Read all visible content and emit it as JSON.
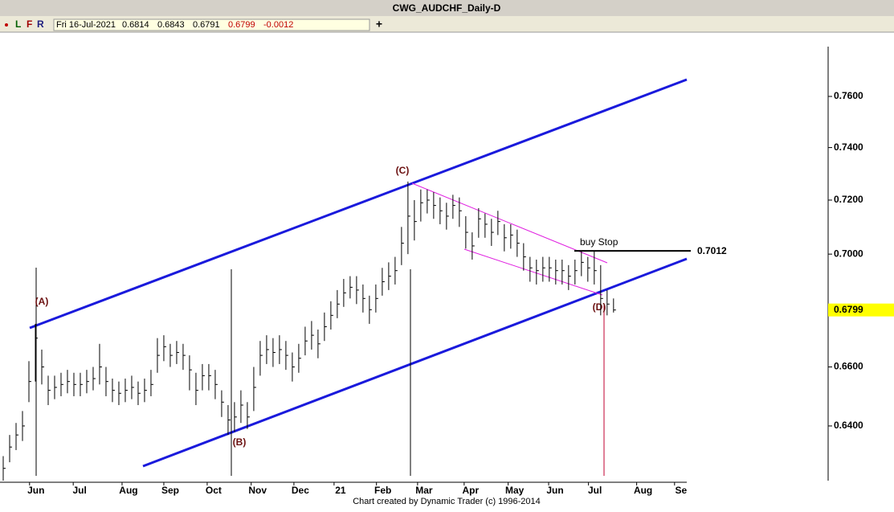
{
  "header": {
    "title": "CWG_AUDCHF_Daily-D",
    "menu": [
      "L",
      "F",
      "R"
    ],
    "date": "Fri 16-Jul-2021",
    "open": 0.6814,
    "high": 0.6843,
    "low": 0.6791,
    "close": 0.6799,
    "change": -0.0012
  },
  "chart_data": {
    "type": "ohlc",
    "color": "#000000",
    "log": true,
    "high": [
      0.63,
      0.637,
      0.641,
      0.645,
      0.662,
      0.675,
      0.666,
      0.657,
      0.657,
      0.658,
      0.659,
      0.658,
      0.658,
      0.659,
      0.66,
      0.668,
      0.66,
      0.656,
      0.655,
      0.656,
      0.657,
      0.655,
      0.656,
      0.659,
      0.67,
      0.671,
      0.668,
      0.669,
      0.668,
      0.664,
      0.658,
      0.661,
      0.661,
      0.659,
      0.652,
      0.647,
      0.648,
      0.652,
      0.648,
      0.66,
      0.669,
      0.671,
      0.67,
      0.671,
      0.669,
      0.665,
      0.668,
      0.674,
      0.676,
      0.673,
      0.679,
      0.683,
      0.687,
      0.691,
      0.692,
      0.692,
      0.689,
      0.685,
      0.689,
      0.695,
      0.697,
      0.699,
      0.71,
      0.727,
      0.72,
      0.724,
      0.724,
      0.723,
      0.721,
      0.719,
      0.722,
      0.721,
      0.714,
      0.708,
      0.717,
      0.715,
      0.713,
      0.716,
      0.711,
      0.711,
      0.709,
      0.704,
      0.699,
      0.698,
      0.699,
      0.699,
      0.698,
      0.698,
      0.696,
      0.698,
      0.701,
      0.699,
      0.701,
      0.696,
      0.687,
      0.684
    ],
    "low": [
      0.622,
      0.628,
      0.632,
      0.635,
      0.648,
      0.655,
      0.654,
      0.647,
      0.649,
      0.65,
      0.651,
      0.65,
      0.65,
      0.651,
      0.652,
      0.654,
      0.65,
      0.648,
      0.647,
      0.648,
      0.649,
      0.647,
      0.648,
      0.65,
      0.658,
      0.662,
      0.66,
      0.661,
      0.659,
      0.652,
      0.647,
      0.652,
      0.652,
      0.649,
      0.643,
      0.637,
      0.638,
      0.641,
      0.639,
      0.645,
      0.657,
      0.661,
      0.66,
      0.661,
      0.659,
      0.655,
      0.658,
      0.664,
      0.666,
      0.663,
      0.669,
      0.673,
      0.677,
      0.681,
      0.684,
      0.682,
      0.679,
      0.675,
      0.679,
      0.685,
      0.687,
      0.689,
      0.696,
      0.7,
      0.705,
      0.712,
      0.715,
      0.713,
      0.711,
      0.709,
      0.713,
      0.71,
      0.702,
      0.698,
      0.706,
      0.706,
      0.703,
      0.707,
      0.701,
      0.702,
      0.699,
      0.694,
      0.69,
      0.689,
      0.69,
      0.69,
      0.689,
      0.689,
      0.687,
      0.689,
      0.692,
      0.69,
      0.689,
      0.678,
      0.678,
      0.679
    ],
    "close": [
      0.626,
      0.633,
      0.637,
      0.64,
      0.655,
      0.67,
      0.66,
      0.652,
      0.653,
      0.654,
      0.655,
      0.654,
      0.654,
      0.655,
      0.656,
      0.66,
      0.655,
      0.652,
      0.651,
      0.652,
      0.653,
      0.651,
      0.652,
      0.654,
      0.664,
      0.667,
      0.664,
      0.665,
      0.664,
      0.659,
      0.652,
      0.657,
      0.657,
      0.654,
      0.648,
      0.642,
      0.643,
      0.647,
      0.643,
      0.653,
      0.664,
      0.666,
      0.665,
      0.666,
      0.664,
      0.66,
      0.663,
      0.669,
      0.671,
      0.668,
      0.674,
      0.678,
      0.682,
      0.686,
      0.688,
      0.687,
      0.684,
      0.68,
      0.684,
      0.69,
      0.692,
      0.694,
      0.704,
      0.714,
      0.712,
      0.719,
      0.72,
      0.718,
      0.716,
      0.714,
      0.718,
      0.716,
      0.708,
      0.703,
      0.713,
      0.711,
      0.708,
      0.712,
      0.706,
      0.707,
      0.704,
      0.699,
      0.695,
      0.694,
      0.695,
      0.695,
      0.694,
      0.694,
      0.692,
      0.694,
      0.697,
      0.695,
      0.694,
      0.684,
      0.682,
      0.6799
    ],
    "ylim": [
      0.622,
      0.78
    ],
    "yticks": [
      {
        "value": 0.64,
        "label": "0.6400"
      },
      {
        "value": 0.66,
        "label": "0.6600"
      },
      {
        "value": 0.7,
        "label": "0.7000"
      },
      {
        "value": 0.72,
        "label": "0.7200"
      },
      {
        "value": 0.74,
        "label": "0.7400"
      },
      {
        "value": 0.76,
        "label": "0.7600"
      }
    ],
    "xlim": [
      -0.5,
      106.4
    ],
    "xticks": [
      {
        "value": 5.1,
        "label": "Jun"
      },
      {
        "value": 11.9,
        "label": "Jul"
      },
      {
        "value": 19.5,
        "label": "Aug"
      },
      {
        "value": 26,
        "label": "Sep"
      },
      {
        "value": 32.75,
        "label": "Oct"
      },
      {
        "value": 39.6,
        "label": "Nov"
      },
      {
        "value": 46.25,
        "label": "Dec"
      },
      {
        "value": 52.5,
        "label": "21"
      },
      {
        "value": 59.1,
        "label": "Feb"
      },
      {
        "value": 65.5,
        "label": "Mar"
      },
      {
        "value": 72.75,
        "label": "Apr"
      },
      {
        "value": 79.6,
        "label": "May"
      },
      {
        "value": 85.9,
        "label": "Jun"
      },
      {
        "value": 92.1,
        "label": "Jul"
      },
      {
        "value": 99.6,
        "label": "Aug"
      },
      {
        "value": 105.5,
        "label": "Se"
      }
    ],
    "wave_labels": [
      "(A)",
      "(B)",
      "(C)",
      "(D)"
    ],
    "buy_stop": {
      "label": "buy Stop",
      "value": 0.7012
    }
  },
  "footer": "Chart created by Dynamic Trader  (c) 1996-2014"
}
